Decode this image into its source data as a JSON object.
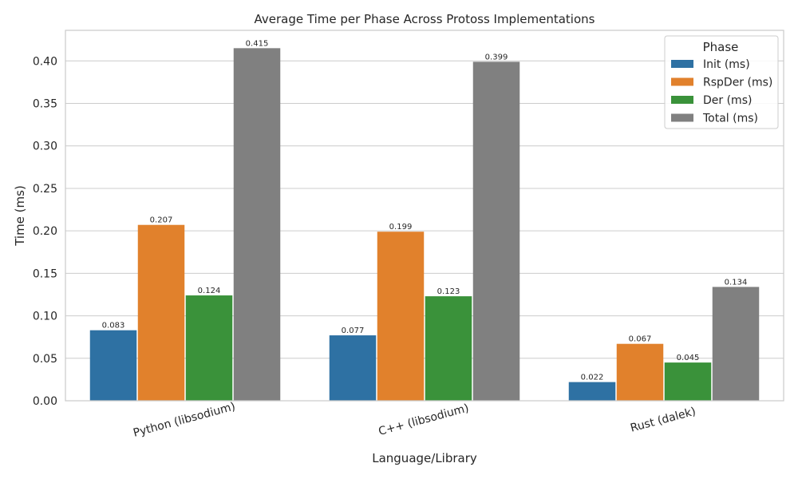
{
  "chart_data": {
    "type": "bar",
    "title": "Average Time per Phase Across Protoss Implementations",
    "xlabel": "Language/Library",
    "ylabel": "Time (ms)",
    "categories": [
      "Python (libsodium)",
      "C++ (libsodium)",
      "Rust (dalek)"
    ],
    "series": [
      {
        "name": "Init (ms)",
        "color": "#2e71a3",
        "values": [
          0.083,
          0.077,
          0.022
        ],
        "labels": [
          "0.083",
          "0.077",
          "0.022"
        ]
      },
      {
        "name": "RspDer (ms)",
        "color": "#e1812c",
        "values": [
          0.207,
          0.199,
          0.067
        ],
        "labels": [
          "0.207",
          "0.199",
          "0.067"
        ]
      },
      {
        "name": "Der (ms)",
        "color": "#3a923a",
        "values": [
          0.124,
          0.123,
          0.045
        ],
        "labels": [
          "0.124",
          "0.123",
          "0.045"
        ]
      },
      {
        "name": "Total (ms)",
        "color": "#808080",
        "values": [
          0.415,
          0.399,
          0.134
        ],
        "labels": [
          "0.415",
          "0.399",
          "0.134"
        ]
      }
    ],
    "yticks": [
      0.0,
      0.05,
      0.1,
      0.15,
      0.2,
      0.25,
      0.3,
      0.35,
      0.4
    ],
    "ytick_labels": [
      "0.00",
      "0.05",
      "0.10",
      "0.15",
      "0.20",
      "0.25",
      "0.30",
      "0.35",
      "0.40"
    ],
    "ylim": [
      0,
      0.436
    ],
    "grid": true,
    "legend": {
      "title": "Phase",
      "position": "top-right"
    }
  }
}
